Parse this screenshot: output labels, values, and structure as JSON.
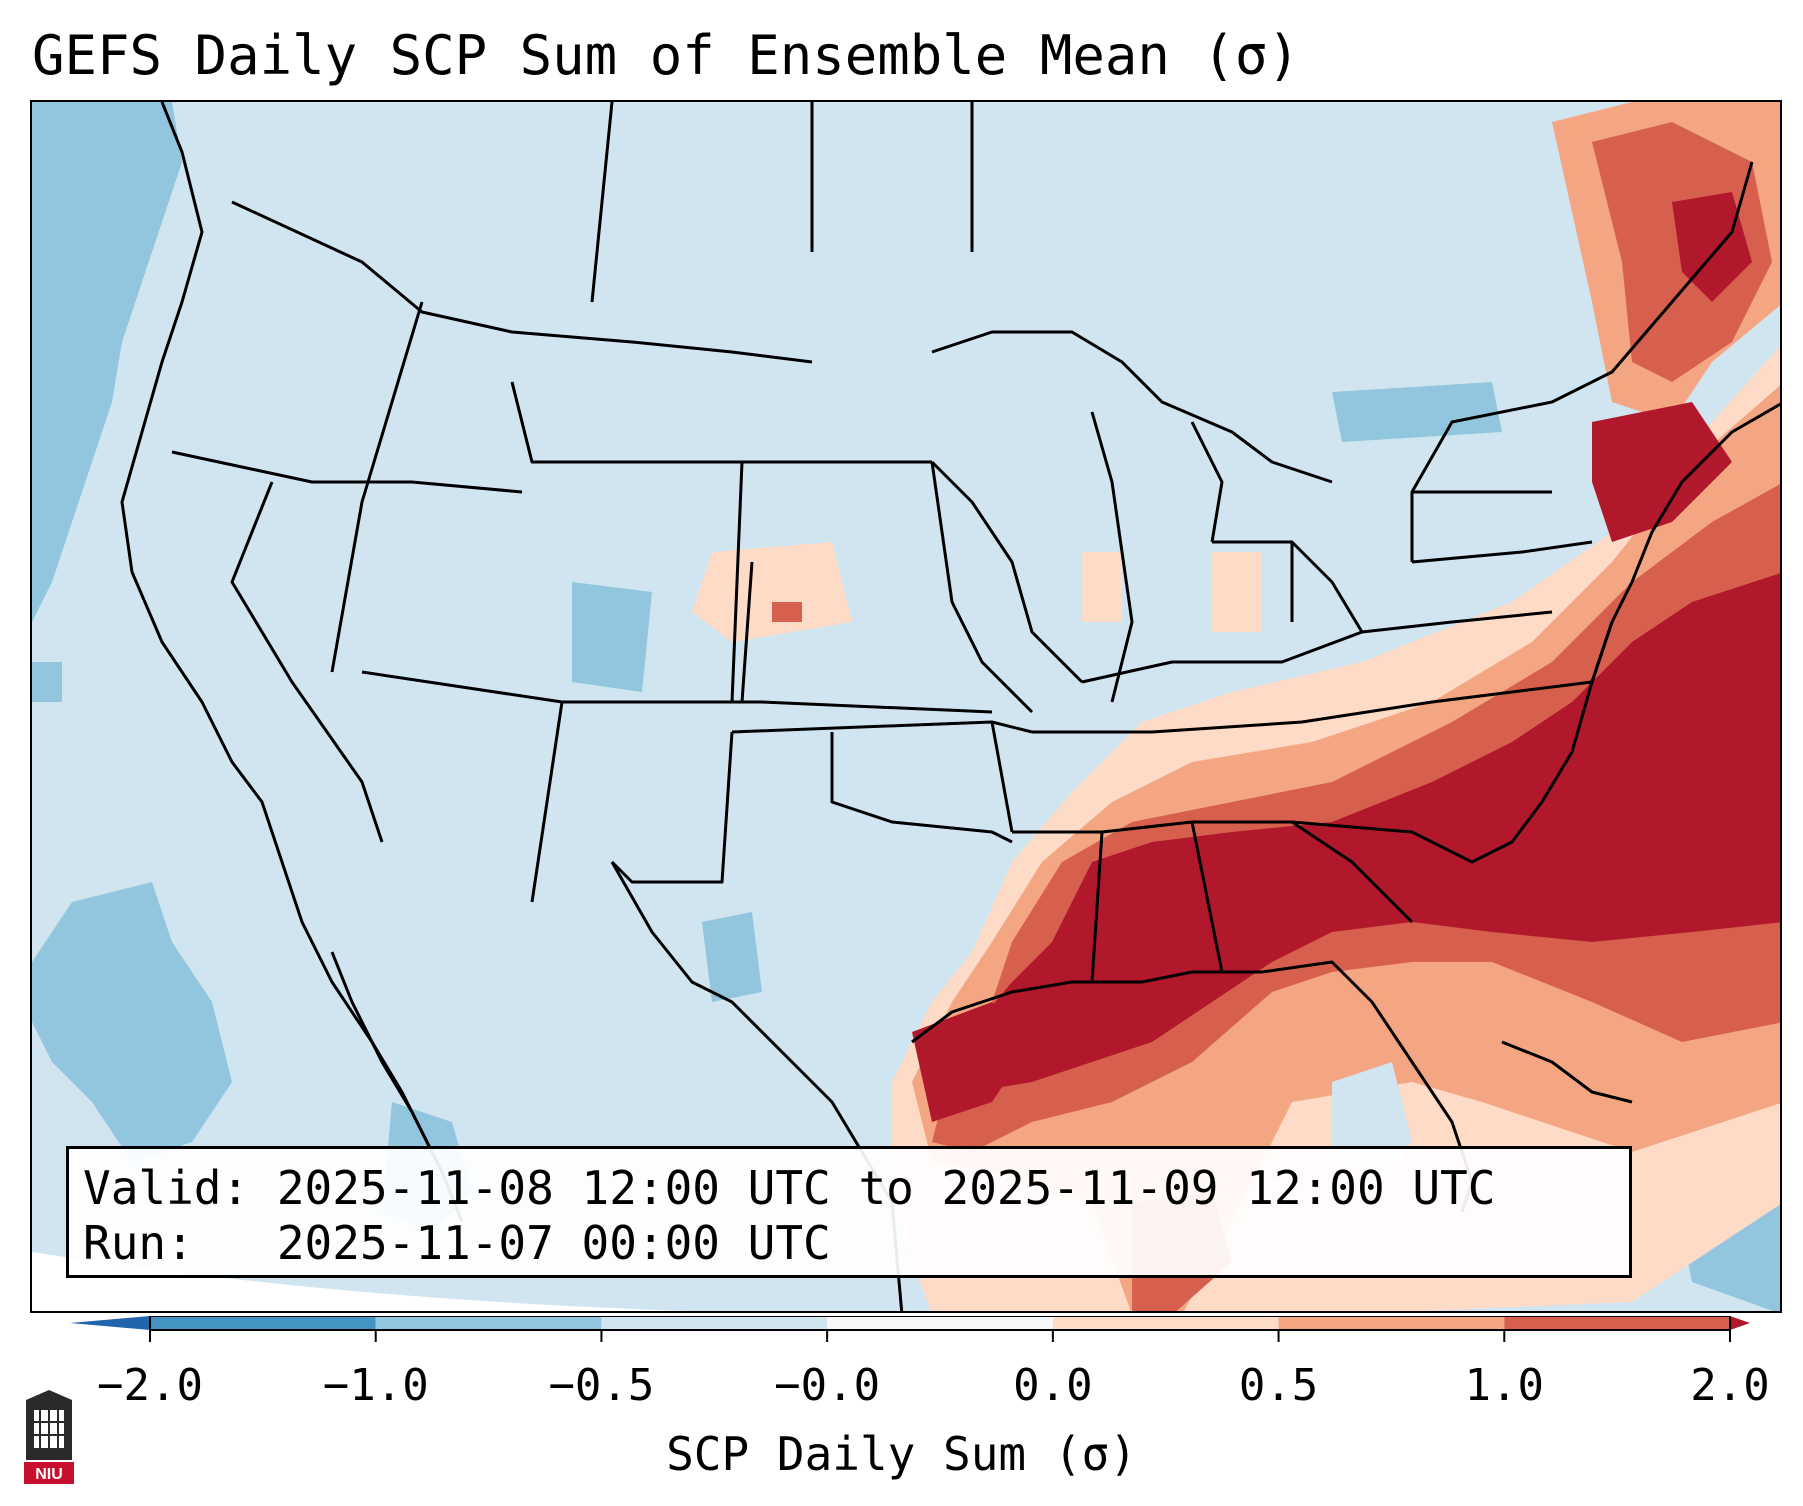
{
  "title": "GEFS Daily SCP Sum of Ensemble Mean (σ)",
  "info": {
    "valid_line": "Valid: 2025-11-08 12:00 UTC to 2025-11-09 12:00 UTC",
    "run_line": "Run:   2025-11-07 00:00 UTC"
  },
  "colorbar": {
    "label": "SCP Daily Sum (σ)",
    "ticks": [
      "−2.0",
      "−1.0",
      "−0.5",
      "−0.0",
      "0.0",
      "0.5",
      "1.0",
      "2.0"
    ],
    "colors": [
      "#4393c3",
      "#92c5de",
      "#d1e5f0",
      "#f7f7f7",
      "#fddbc7",
      "#f4a582",
      "#d6604d",
      "#b2182b"
    ],
    "extend": "both"
  },
  "logo": {
    "text": "NIU",
    "icon": "university-seal-icon"
  },
  "map": {
    "projection": "lambert-conformal",
    "region": "CONUS",
    "background_color": "#d1e5f0",
    "highlight": "southeast US and western Atlantic strongly positive; Pacific and Gulf of California weakly negative"
  }
}
